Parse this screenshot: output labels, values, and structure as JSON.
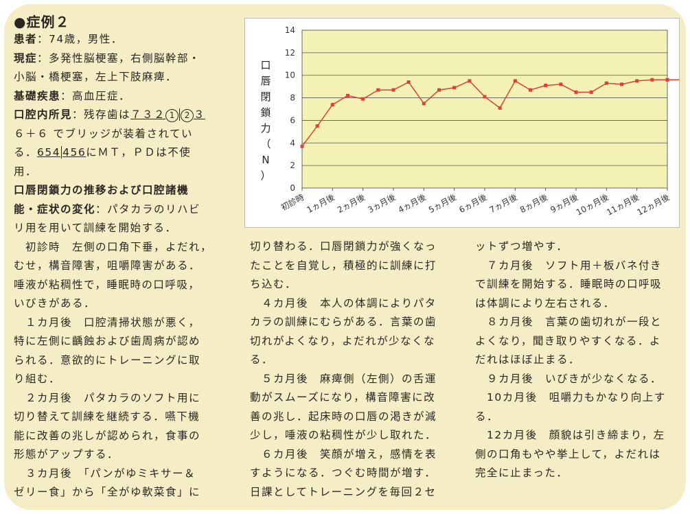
{
  "title": "●症例２",
  "col1": {
    "l1": {
      "label": "患者",
      "text": "：74歳，男性．"
    },
    "l2": {
      "label": "現症",
      "text": "：多発性脳梗塞，右側脳幹部・"
    },
    "l3": "小脳・橋梗塞，左上下肢麻痺．",
    "l4": {
      "label": "基礎疾患",
      "text": "：高血圧症．"
    },
    "l5": {
      "label": "口腔内所見",
      "pre": "：残存歯は",
      "teeth_a": "７３２",
      "c1": "1",
      "c2": "2",
      "teeth_b": "３"
    },
    "l6": {
      "teeth": "６＋６",
      "text": " でブリッジが装着されてい"
    },
    "l7": {
      "pre": "る．",
      "teeth_l": "654",
      "teeth_r": "456",
      "post": "にＭＴ，ＰＤは不使"
    },
    "l8": "用．",
    "l9": "口唇閉鎖力の推移および口腔諸機",
    "l10": {
      "label": "能・症状の変化",
      "text": "：パタカラのリハビ"
    },
    "l11": "リ用を用いて訓練を開始する．",
    "l12": "　初診時　左側の口角下垂，よだれ，",
    "l13": "むせ，構音障害，咀嚼障害がある．",
    "l14": "唾液が粘稠性で，睡眠時の口呼吸，",
    "l15": "いびきがある．",
    "l16": "　１カ月後　口腔清掃状態が悪く，",
    "l17": "特に左側に齲蝕および歯周病が認め",
    "l18": "られる．意欲的にトレーニングに取",
    "l19": "り組む．",
    "l20": "　２カ月後　パタカラのソフト用に",
    "l21": "切り替えて訓練を継続する．嚥下機",
    "l22": "能に改善の兆しが認められ，食事の",
    "l23": "形態がアップする．",
    "l24": "　３カ月後　「パンがゆミキサー＆",
    "l25": "ゼリー食」から「全がゆ軟菜食」に"
  },
  "col2": [
    "切り替わる．口唇閉鎖力が強くなっ",
    "たことを自覚し，積極的に訓練に打",
    "ち込む．",
    "　４カ月後　本人の体調によりパタ",
    "カラの訓練にむらがある．言葉の歯",
    "切れがよくなり，よだれが少なくな",
    "る．",
    "　５カ月後　麻痺側（左側）の舌運",
    "動がスムーズになり，構音障害に改",
    "善の兆し．起床時の口唇の渇きが減",
    "少し，唾液の粘稠性が少し取れた．",
    "　６カ月後　笑顔が増え，感情を表",
    "すようになる．つぐむ時間が増す．",
    "日課としてトレーニングを毎回２セ"
  ],
  "col3": [
    "ットずつ増やす．",
    "　７カ月後　ソフト用＋板バネ付き",
    "で訓練を開始する．睡眠時の口呼吸",
    "は体調により左右される．",
    "　８カ月後　言葉の歯切れが一段と",
    "よくなり，聞き取りやすくなる．よ",
    "だれはほぼ止まる．",
    "　９カ月後　いびきが少なくなる．",
    "　10カ月後　咀嚼力もかなり向上す",
    "る．",
    "　12カ月後　顔貌は引き締まり，左",
    "側の口角もやや挙上して，よだれは",
    "完全に止まった．"
  ],
  "chart_data": {
    "type": "line",
    "ylabel": "口唇閉鎖力（N）",
    "ylim": [
      0,
      14
    ],
    "yticks": [
      "0",
      "2",
      "4",
      "6",
      "8",
      "10",
      "12",
      "14"
    ],
    "categories": [
      "初診時",
      "1ヵ月後",
      "2ヵ月後",
      "3ヵ月後",
      "4ヵ月後",
      "5ヵ月後",
      "6ヵ月後",
      "7ヵ月後",
      "8ヵ月後",
      "9ヵ月後",
      "10ヵ月後",
      "11ヵ月後",
      "12ヵ月後"
    ],
    "x": [
      0,
      0.5,
      1,
      1.5,
      2,
      2.5,
      3,
      3.5,
      4,
      4.5,
      5,
      5.5,
      6,
      6.5,
      7,
      7.5,
      8,
      8.5,
      9,
      9.5,
      10,
      10.5,
      11,
      11.5,
      12,
      12.5
    ],
    "values": [
      3.7,
      5.5,
      7.4,
      8.2,
      7.9,
      8.7,
      8.7,
      9.4,
      7.5,
      8.7,
      8.9,
      9.5,
      8.1,
      7.1,
      9.5,
      8.7,
      9.1,
      9.2,
      8.5,
      8.5,
      9.3,
      9.2,
      9.5,
      9.6,
      9.6,
      9.6
    ],
    "grid": true,
    "plot_bg": "#f3f2b4",
    "line_color": "#d9413a"
  }
}
